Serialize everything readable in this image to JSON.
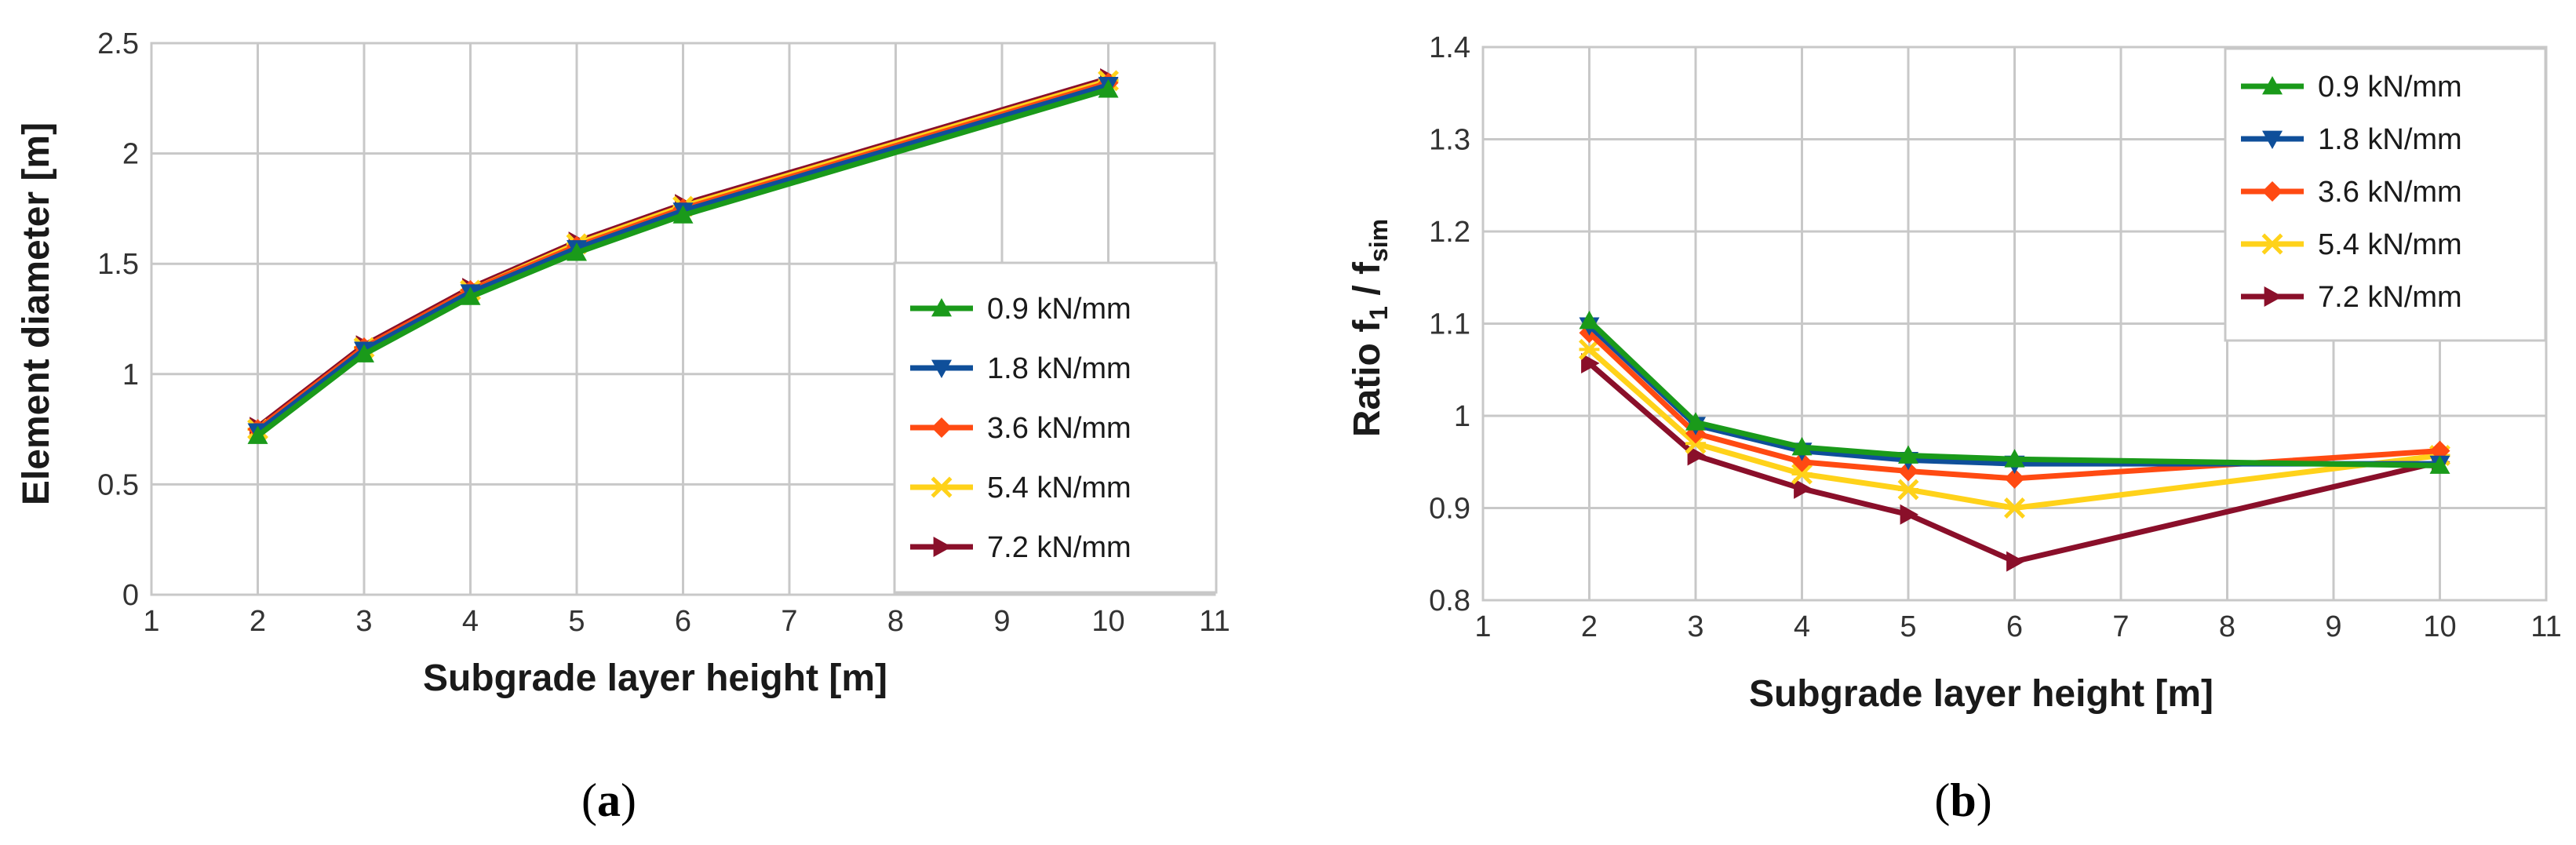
{
  "chart_data": [
    {
      "type": "line",
      "panel": "a",
      "x": [
        2,
        3,
        4,
        5,
        6,
        10
      ],
      "series": [
        {
          "name": "0.9 kN/mm",
          "color": "#1a9a1a",
          "marker": "triangle-up",
          "values": [
            0.72,
            1.09,
            1.35,
            1.55,
            1.72,
            2.29
          ]
        },
        {
          "name": "1.8 kN/mm",
          "color": "#0f4f9a",
          "marker": "triangle-down",
          "values": [
            0.74,
            1.11,
            1.37,
            1.57,
            1.74,
            2.31
          ]
        },
        {
          "name": "3.6 kN/mm",
          "color": "#ff4a12",
          "marker": "diamond",
          "values": [
            0.75,
            1.12,
            1.38,
            1.58,
            1.75,
            2.32
          ]
        },
        {
          "name": "5.4 kN/mm",
          "color": "#ffd21a",
          "marker": "x-star",
          "values": [
            0.75,
            1.12,
            1.38,
            1.59,
            1.76,
            2.33
          ]
        },
        {
          "name": "7.2 kN/mm",
          "color": "#8a0f2a",
          "marker": "triangle-right",
          "values": [
            0.76,
            1.13,
            1.39,
            1.6,
            1.77,
            2.34
          ]
        }
      ],
      "xlabel": "Subgrade layer height  [m]",
      "ylabel": "Element diameter  [m]",
      "xlim": [
        1,
        11
      ],
      "ylim": [
        0,
        2.5
      ],
      "xticks": [
        "1",
        "2",
        "3",
        "4",
        "5",
        "6",
        "7",
        "8",
        "9",
        "10",
        "11"
      ],
      "yticks": [
        "0",
        "0.5",
        "1",
        "1.5",
        "2",
        "2.5"
      ],
      "grid": true,
      "legend_position": "bottom-right"
    },
    {
      "type": "line",
      "panel": "b",
      "x": [
        2,
        3,
        4,
        5,
        6,
        10
      ],
      "series": [
        {
          "name": "0.9 kN/mm",
          "color": "#1a9a1a",
          "marker": "triangle-up",
          "values": [
            1.103,
            0.993,
            0.966,
            0.957,
            0.953,
            0.946
          ]
        },
        {
          "name": "1.8 kN/mm",
          "color": "#0f4f9a",
          "marker": "triangle-down",
          "values": [
            1.098,
            0.99,
            0.962,
            0.952,
            0.948,
            0.948
          ]
        },
        {
          "name": "3.6 kN/mm",
          "color": "#ff4a12",
          "marker": "diamond",
          "values": [
            1.09,
            0.981,
            0.95,
            0.94,
            0.932,
            0.962
          ]
        },
        {
          "name": "5.4 kN/mm",
          "color": "#ffd21a",
          "marker": "x-star",
          "values": [
            1.072,
            0.97,
            0.937,
            0.92,
            0.9,
            0.957
          ]
        },
        {
          "name": "7.2 kN/mm",
          "color": "#8a0f2a",
          "marker": "triangle-right",
          "values": [
            1.057,
            0.957,
            0.921,
            0.893,
            0.842,
            0.95
          ]
        }
      ],
      "xlabel": "Subgrade layer height  [m]",
      "ylabel_main": "Ratio f",
      "ylabel_sub1": "1",
      "ylabel_mid": " / f",
      "ylabel_sub2": "sim",
      "xlim": [
        1,
        11
      ],
      "ylim": [
        0.8,
        1.4
      ],
      "xticks": [
        "1",
        "2",
        "3",
        "4",
        "5",
        "6",
        "7",
        "8",
        "9",
        "10",
        "11"
      ],
      "yticks": [
        "0.8",
        "0.9",
        "1",
        "1.1",
        "1.2",
        "1.3",
        "1.4"
      ],
      "grid": true,
      "legend_position": "top-right"
    }
  ],
  "labels": {
    "panel_a": {
      "open": "(",
      "letter": "a",
      "close": ")"
    },
    "panel_b": {
      "open": "(",
      "letter": "b",
      "close": ")"
    }
  }
}
